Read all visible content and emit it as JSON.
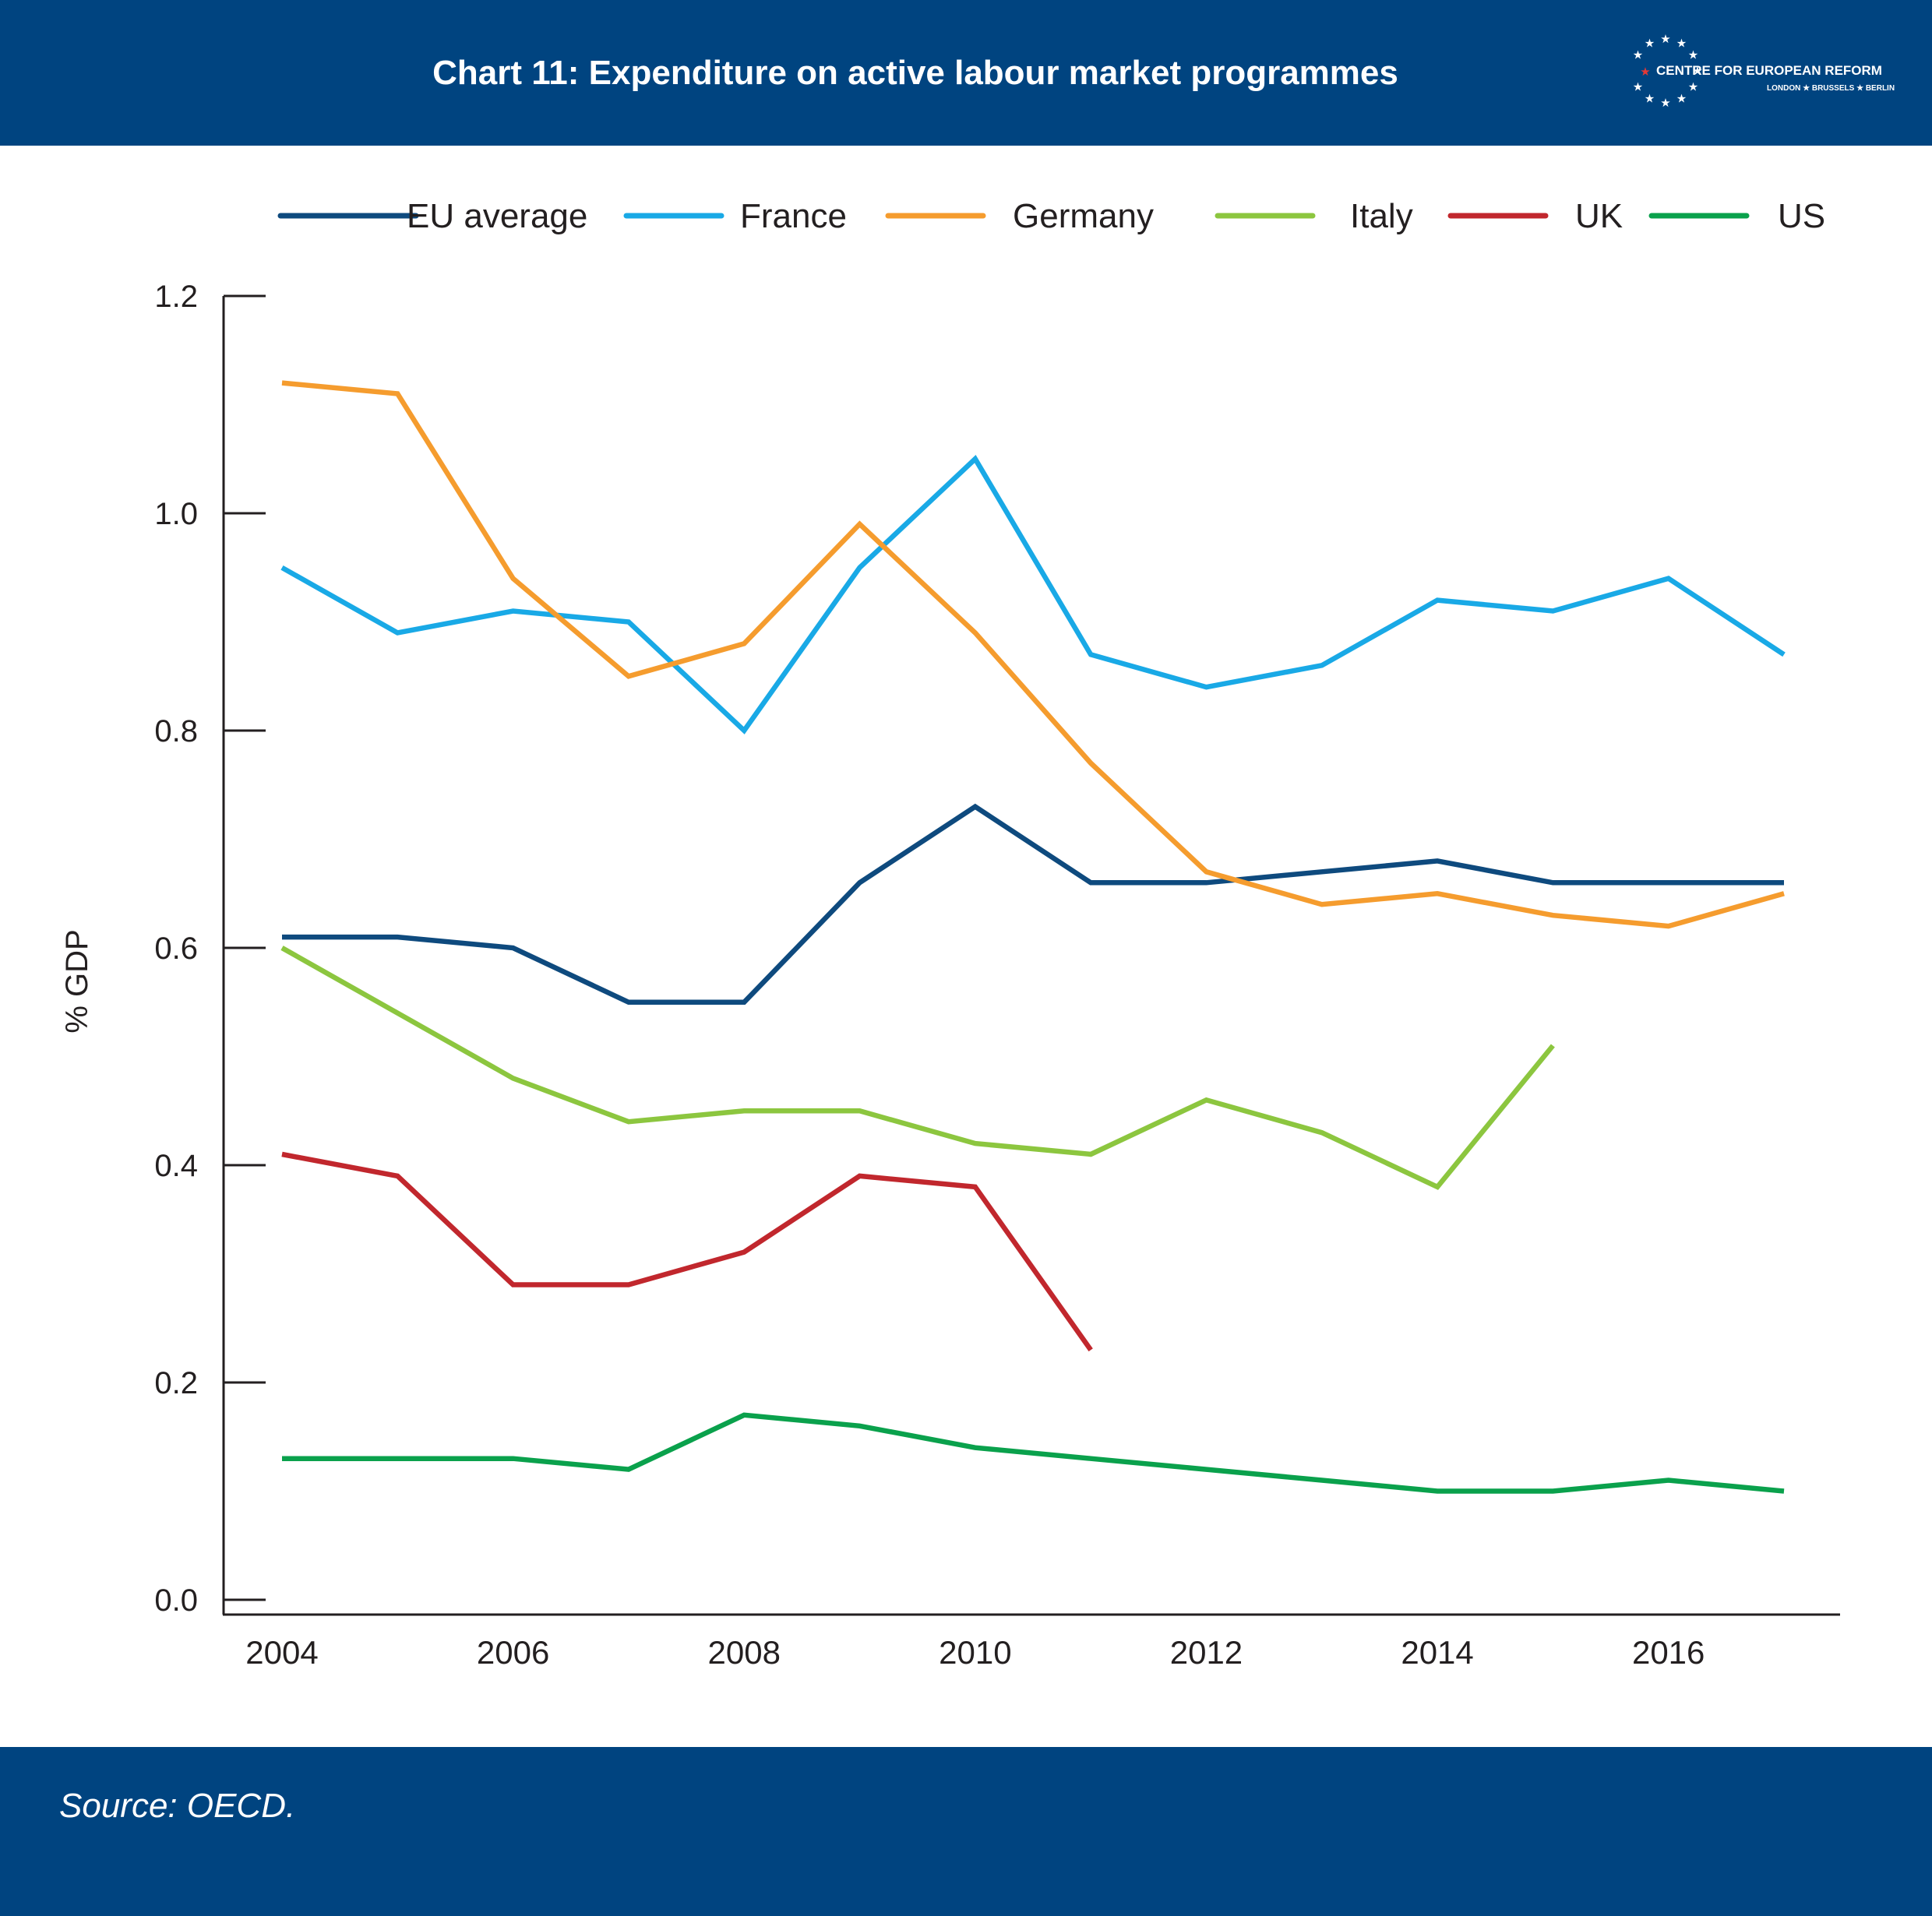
{
  "header": {
    "title": "Chart 11: Expenditure on active labour market programmes",
    "logo_text": "CENTRE FOR EUROPEAN REFORM",
    "logo_subtext": "LONDON ★ BRUSSELS ★ BERLIN"
  },
  "footer": {
    "source": "Source: OECD."
  },
  "colors": {
    "brand_blue": "#004480",
    "EU average": "#0e4a7e",
    "France": "#19a9e6",
    "Germany": "#f59c2e",
    "Italy": "#8cc63f",
    "UK": "#c1272d",
    "US": "#0aa14c",
    "star_red": "#e53935"
  },
  "chart_data": {
    "type": "line",
    "title": "Chart 11: Expenditure on active labour market programmes",
    "xlabel": "",
    "ylabel": "% GDP",
    "xlim": [
      2004,
      2017
    ],
    "ylim": [
      0,
      1.2
    ],
    "x_ticks": [
      "2004",
      "2006",
      "2008",
      "2010",
      "2012",
      "2014",
      "2016"
    ],
    "y_ticks": [
      "0.0",
      "0.2",
      "0.4",
      "0.6",
      "0.8",
      "1.0",
      "1.2"
    ],
    "legend_position": "top",
    "grid": false,
    "x": [
      2004,
      2005,
      2006,
      2007,
      2008,
      2009,
      2010,
      2011,
      2012,
      2013,
      2014,
      2015,
      2016,
      2017
    ],
    "series": [
      {
        "name": "EU average",
        "values": [
          0.61,
          0.61,
          0.6,
          0.55,
          0.55,
          0.66,
          0.73,
          0.66,
          0.66,
          0.67,
          0.68,
          0.66,
          0.66,
          0.66
        ]
      },
      {
        "name": "France",
        "values": [
          0.95,
          0.89,
          0.91,
          0.9,
          0.8,
          0.95,
          1.05,
          0.87,
          0.84,
          0.86,
          0.92,
          0.91,
          0.94,
          0.87
        ]
      },
      {
        "name": "Germany",
        "values": [
          1.12,
          1.11,
          0.94,
          0.85,
          0.88,
          0.99,
          0.89,
          0.77,
          0.67,
          0.64,
          0.65,
          0.63,
          0.62,
          0.65
        ]
      },
      {
        "name": "Italy",
        "values": [
          0.6,
          0.54,
          0.48,
          0.44,
          0.45,
          0.45,
          0.42,
          0.41,
          0.46,
          0.43,
          0.38,
          0.51,
          null,
          null
        ]
      },
      {
        "name": "UK",
        "values": [
          0.41,
          0.39,
          0.29,
          0.29,
          0.32,
          0.39,
          0.38,
          0.23,
          null,
          null,
          null,
          null,
          null,
          null
        ]
      },
      {
        "name": "US",
        "values": [
          0.13,
          0.13,
          0.13,
          0.12,
          0.17,
          0.16,
          0.14,
          0.13,
          0.12,
          0.11,
          0.1,
          0.1,
          0.11,
          0.1
        ]
      }
    ]
  }
}
